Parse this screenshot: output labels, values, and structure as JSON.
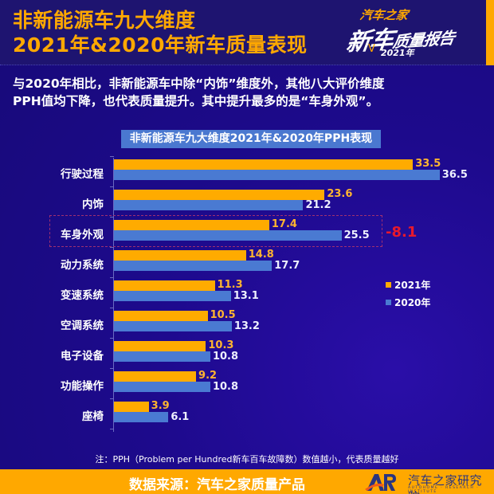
{
  "header": {
    "title_line1": "非新能源车九大维度",
    "title_line2": "2021年&2020年新车质量表现",
    "badge": {
      "brand": "汽车之家",
      "main_big": "新车",
      "main_small": "质量报告",
      "year": "2021年"
    }
  },
  "summary": {
    "line1": "与2020年相比，非新能源车中除“内饰”维度外，其他八大评价维度",
    "line2": "PPH值均下降，也代表质量提升。其中提升最多的是“车身外观”。"
  },
  "chart_data": {
    "type": "bar",
    "orientation": "horizontal",
    "title": "非新能源车九大维度2021年&2020年PPH表现",
    "categories": [
      "行驶过程",
      "内饰",
      "车身外观",
      "动力系统",
      "变速系统",
      "空调系统",
      "电子设备",
      "功能操作",
      "座椅"
    ],
    "series": [
      {
        "name": "2021年",
        "color": "#ffab00",
        "values": [
          33.5,
          23.6,
          17.4,
          14.8,
          11.3,
          10.5,
          10.3,
          9.2,
          3.9
        ]
      },
      {
        "name": "2020年",
        "color": "#4a7ad2",
        "values": [
          36.5,
          21.2,
          25.5,
          17.7,
          13.1,
          13.2,
          10.8,
          10.8,
          6.1
        ]
      }
    ],
    "labels_2021": [
      "33.5",
      "23.6",
      "17.4",
      "14.8",
      "11.3",
      "10.5",
      "10.3",
      "9.2",
      "3.9"
    ],
    "labels_2020": [
      "36.5",
      "21.2",
      "25.5",
      "17.7",
      "13.1",
      "13.2",
      "10.8",
      "10.8",
      "6.1"
    ],
    "annotation": {
      "category": "车身外观",
      "text": "-8.1",
      "color": "#e8192c"
    },
    "legend": {
      "position": "right",
      "entries": [
        "2021年",
        "2020年"
      ]
    },
    "xlabel": "",
    "ylabel": "",
    "grid": false
  },
  "note": "注：PPH（Problem per Hundred新车百车故障数）数值越小，代表质量越好",
  "footer": {
    "source": "数据来源：汽车之家质量产品",
    "logo_mark": "AR",
    "org_name": "汽车之家研究院",
    "org_sub": "AUTOHOME · RESEARCH · INSTITUTE"
  },
  "colors": {
    "background": "#1d0a8c",
    "accent_orange": "#ffa800",
    "bar_2021": "#ffab00",
    "bar_2020": "#4a7ad2",
    "delta_red": "#e8192c"
  }
}
